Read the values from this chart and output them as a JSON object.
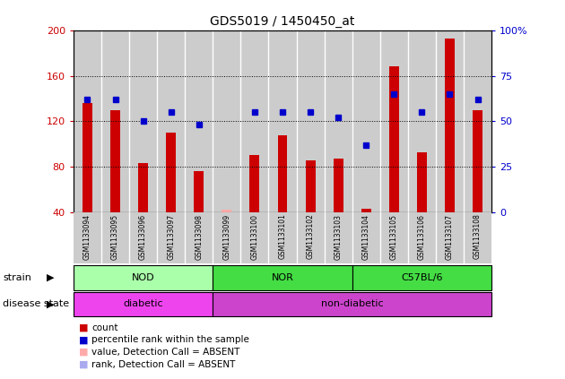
{
  "title": "GDS5019 / 1450450_at",
  "samples": [
    "GSM1133094",
    "GSM1133095",
    "GSM1133096",
    "GSM1133097",
    "GSM1133098",
    "GSM1133099",
    "GSM1133100",
    "GSM1133101",
    "GSM1133102",
    "GSM1133103",
    "GSM1133104",
    "GSM1133105",
    "GSM1133106",
    "GSM1133107",
    "GSM1133108"
  ],
  "counts": [
    136,
    130,
    83,
    110,
    76,
    42,
    90,
    108,
    86,
    87,
    43,
    168,
    93,
    193,
    130
  ],
  "percentile_ranks": [
    62,
    62,
    50,
    55,
    48,
    null,
    55,
    55,
    55,
    52,
    37,
    65,
    55,
    65,
    62
  ],
  "absent_mask": [
    false,
    false,
    false,
    false,
    false,
    true,
    false,
    false,
    false,
    false,
    false,
    false,
    false,
    false,
    false
  ],
  "ymin": 40,
  "ymax": 200,
  "yleft_ticks": [
    40,
    80,
    120,
    160,
    200
  ],
  "yright_ticks": [
    0,
    25,
    50,
    75,
    100
  ],
  "bar_color": "#cc0000",
  "bar_color_absent": "#ffaaaa",
  "dot_color": "#0000cc",
  "dot_color_absent": "#aaaaee",
  "strain_colors": [
    "#aaffaa",
    "#44dd44",
    "#44dd44"
  ],
  "strain_labels": [
    "NOD",
    "NOR",
    "C57BL/6"
  ],
  "strain_starts": [
    0,
    5,
    10
  ],
  "strain_ends": [
    5,
    10,
    15
  ],
  "disease_colors": [
    "#ee44ee",
    "#cc44cc"
  ],
  "disease_labels": [
    "diabetic",
    "non-diabetic"
  ],
  "disease_starts": [
    0,
    5
  ],
  "disease_ends": [
    5,
    15
  ],
  "legend_labels": [
    "count",
    "percentile rank within the sample",
    "value, Detection Call = ABSENT",
    "rank, Detection Call = ABSENT"
  ],
  "legend_colors": [
    "#cc0000",
    "#0000cc",
    "#ffaaaa",
    "#aaaaee"
  ],
  "bg_color": "#ffffff",
  "tick_color_left": "#cc0000",
  "tick_color_right": "#0000cc"
}
